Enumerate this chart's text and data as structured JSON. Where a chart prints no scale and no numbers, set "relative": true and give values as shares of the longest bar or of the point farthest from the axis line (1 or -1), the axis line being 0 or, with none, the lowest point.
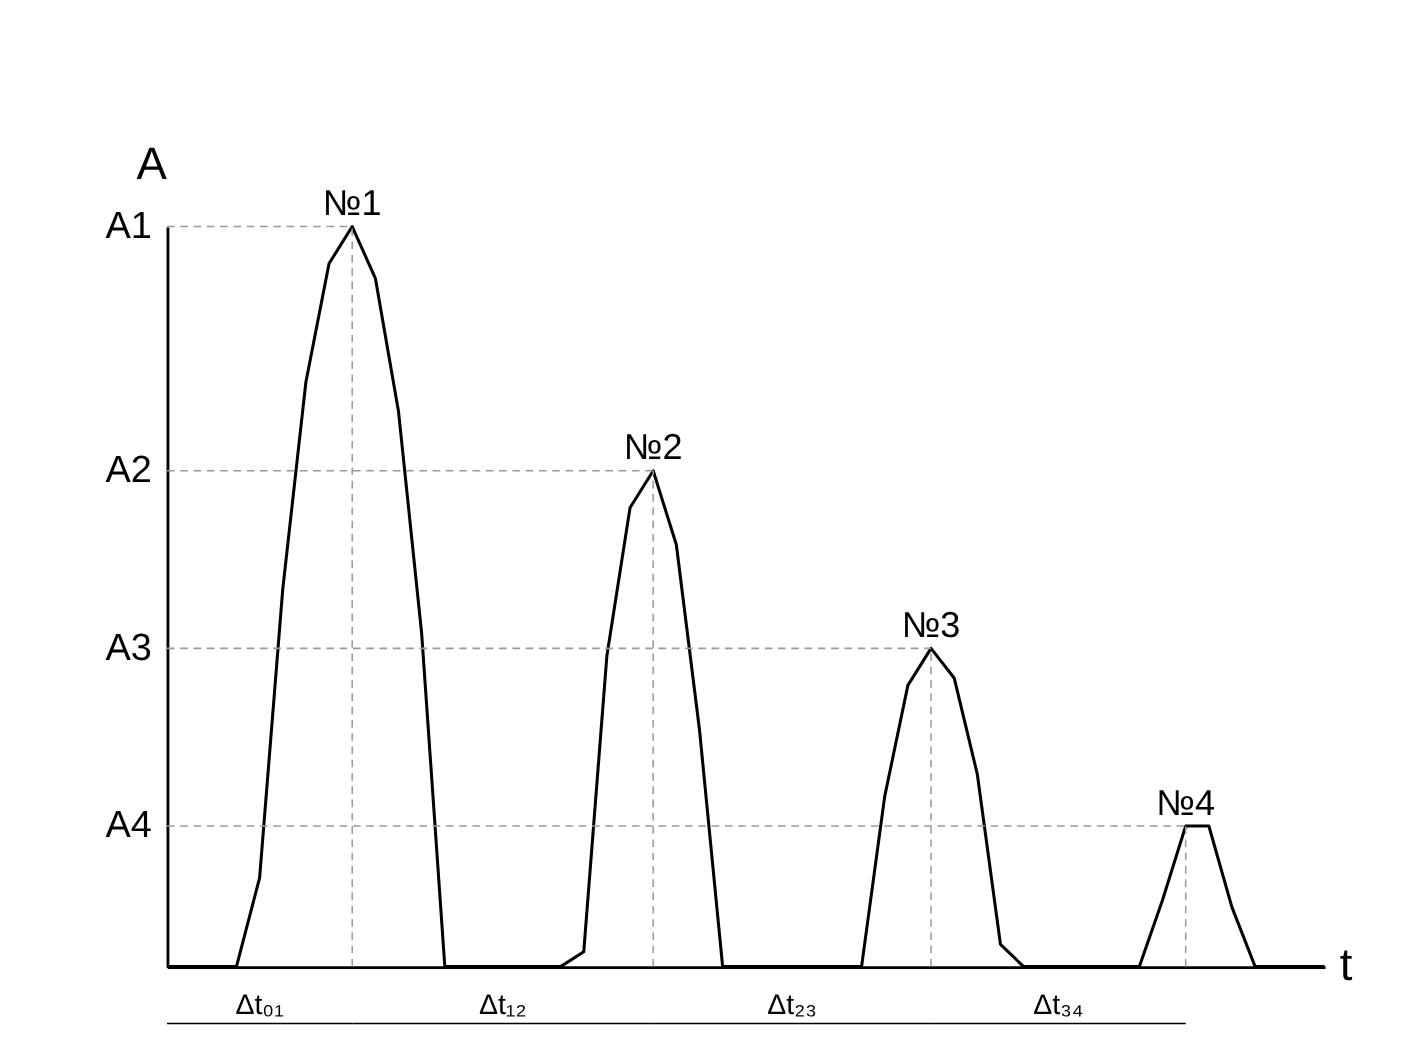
{
  "chart_data": {
    "type": "line",
    "relative": true,
    "xlabel": "t",
    "ylabel": "A",
    "color": "#000000",
    "line_style": "solid",
    "marker": "none",
    "grid": false,
    "categories": [
      null,
      null,
      null,
      null,
      null,
      null,
      null,
      null,
      null,
      null,
      null,
      null,
      null,
      null,
      null,
      null,
      null,
      null,
      null,
      null,
      null,
      null,
      null,
      null,
      null,
      null,
      null,
      null,
      null,
      null,
      null,
      null,
      null,
      null,
      null,
      null,
      null,
      null,
      null,
      null,
      null,
      null,
      null,
      null,
      null,
      null,
      null,
      null,
      null,
      null,
      null
    ],
    "values": [
      0,
      0,
      0,
      0,
      0.12,
      0.51,
      0.79,
      0.95,
      1.0,
      0.93,
      0.75,
      0.45,
      0,
      0,
      0,
      0,
      0,
      0,
      0.02,
      0.42,
      0.62,
      0.67,
      0.57,
      0.32,
      0,
      0,
      0,
      0,
      0,
      0,
      0,
      0.23,
      0.38,
      0.43,
      0.39,
      0.26,
      0.03,
      0,
      0,
      0,
      0,
      0,
      0,
      0.09,
      0.19,
      0.19,
      0.08,
      0,
      0,
      0,
      0
    ],
    "ref_lines": [
      {
        "axis": "y",
        "value": 1.0,
        "label": "A1",
        "line_style": "dashed",
        "color": "#999999"
      },
      {
        "axis": "y",
        "value": 0.67,
        "label": "A2",
        "line_style": "dashed",
        "color": "#999999"
      },
      {
        "axis": "y",
        "value": 0.43,
        "label": "A3",
        "line_style": "dashed",
        "color": "#999999"
      },
      {
        "axis": "y",
        "value": 0.19,
        "label": "A4",
        "line_style": "dashed",
        "color": "#999999"
      }
    ],
    "annotations": [
      {
        "text": "№1",
        "y": 1.0
      },
      {
        "text": "№2",
        "y": 0.67
      },
      {
        "text": "№3",
        "y": 0.43
      },
      {
        "text": "№4",
        "y": 0.19
      },
      "Δt₀₁",
      "Δt₁₂",
      "Δt₂₃",
      "Δt₃₄"
    ]
  }
}
